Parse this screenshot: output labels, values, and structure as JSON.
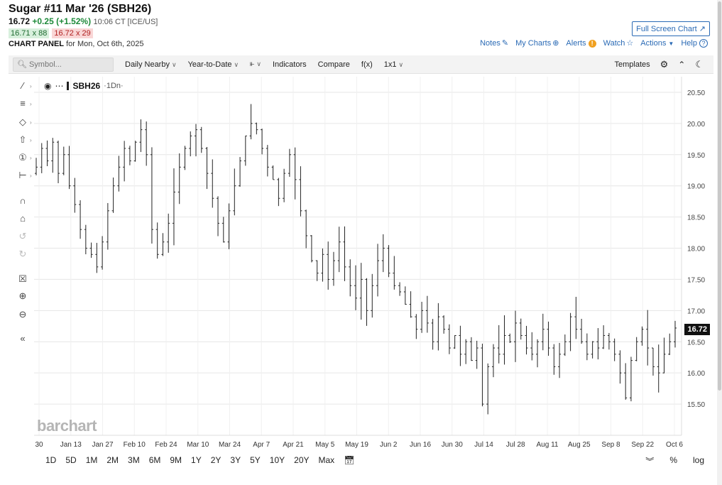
{
  "header": {
    "title": "Sugar #11 Mar '26 (SBH26)",
    "last": "16.72",
    "change": "+0.25 (+1.52%)",
    "time": "10:06 CT [ICE/US]",
    "bid": "16.71 x 88",
    "ask": "16.72 x 29",
    "panel_label": "CHART PANEL",
    "panel_date": "for Mon, Oct 6th, 2025",
    "fullscreen_label": "Full Screen Chart",
    "links": {
      "notes": "Notes",
      "mycharts": "My Charts",
      "alerts": "Alerts",
      "watch": "Watch",
      "actions": "Actions",
      "help": "Help"
    }
  },
  "toolbar": {
    "search_placeholder": "Symbol...",
    "aggregation": "Daily Nearby",
    "range": "Year-to-Date",
    "indicators": "Indicators",
    "compare": "Compare",
    "fx": "f(x)",
    "layout": "1x1",
    "templates": "Templates"
  },
  "legend": {
    "symbol": "SBH26",
    "interval": "·1Dn·"
  },
  "logo": "barchart",
  "last_price_tag": "16.72",
  "periods": [
    "1D",
    "5D",
    "1M",
    "2M",
    "3M",
    "6M",
    "9M",
    "1Y",
    "2Y",
    "3Y",
    "5Y",
    "10Y",
    "20Y",
    "Max"
  ],
  "bottom_right": {
    "pct": "%",
    "log": "log"
  },
  "chart_data": {
    "type": "ohlc",
    "ylim": [
      15.0,
      20.75
    ],
    "yticks": [
      15.5,
      16.0,
      16.5,
      17.0,
      17.5,
      18.0,
      18.5,
      19.0,
      19.5,
      20.0,
      20.5
    ],
    "xticks": [
      "30",
      "Jan 13",
      "Jan 27",
      "Feb 10",
      "Feb 24",
      "Mar 10",
      "Mar 24",
      "Apr 7",
      "Apr 21",
      "May 5",
      "May 19",
      "Jun 2",
      "Jun 16",
      "Jun 30",
      "Jul 14",
      "Jul 28",
      "Aug 11",
      "Aug 25",
      "Sep 8",
      "Sep 22",
      "Oct 6"
    ],
    "grid": true,
    "closes": [
      19.3,
      19.6,
      19.4,
      19.7,
      19.2,
      19.5,
      19.0,
      18.7,
      18.3,
      18.0,
      17.9,
      17.7,
      18.1,
      18.6,
      19.0,
      19.3,
      19.6,
      19.4,
      19.7,
      19.9,
      19.5,
      18.3,
      17.9,
      18.1,
      18.4,
      18.9,
      19.3,
      19.6,
      19.8,
      19.9,
      19.6,
      19.2,
      18.8,
      18.4,
      18.1,
      18.6,
      19.0,
      19.4,
      19.8,
      20.0,
      19.9,
      19.6,
      19.3,
      19.1,
      18.8,
      19.2,
      19.5,
      19.1,
      18.6,
      18.2,
      17.8,
      17.6,
      17.9,
      17.5,
      17.8,
      18.1,
      17.7,
      17.4,
      17.2,
      17.5,
      17.0,
      17.4,
      17.8,
      18.0,
      17.6,
      17.4,
      17.3,
      17.1,
      16.9,
      16.7,
      17.0,
      16.8,
      16.5,
      16.9,
      16.7,
      16.4,
      16.6,
      16.3,
      16.5,
      16.2,
      16.4,
      15.5,
      16.1,
      16.4,
      16.3,
      16.6,
      16.5,
      16.8,
      16.6,
      16.4,
      16.3,
      16.5,
      16.7,
      16.4,
      16.1,
      16.3,
      16.5,
      16.9,
      16.7,
      16.5,
      16.3,
      16.5,
      16.4,
      16.6,
      16.5,
      16.3,
      16.0,
      15.6,
      16.2,
      16.5,
      16.7,
      16.4,
      16.1,
      16.0,
      16.3,
      16.5,
      16.72
    ]
  }
}
